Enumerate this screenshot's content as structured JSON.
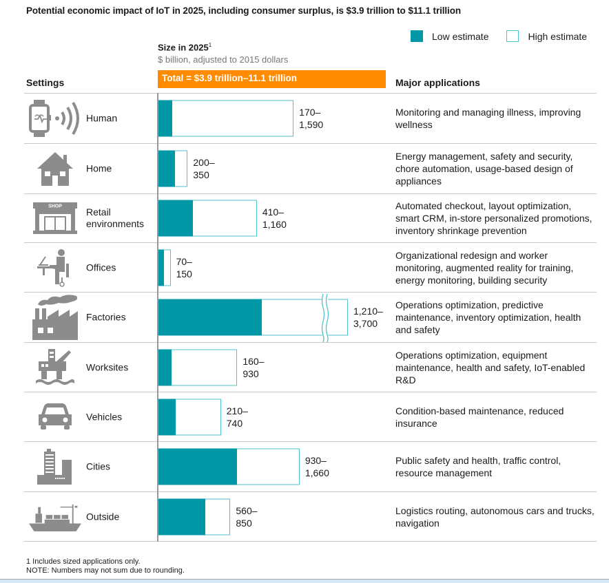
{
  "title": "Potential economic impact of IoT in 2025, including consumer surplus, is $3.9 trillion to $11.1 trillion",
  "legend": {
    "low": "Low estimate",
    "high": "High estimate"
  },
  "size_header": {
    "title": "Size in 2025",
    "superscript": "1",
    "subtitle": "$ billion, adjusted to 2015 dollars",
    "total": "Total = $3.9 trillion–11.1 trillion"
  },
  "headers": {
    "settings": "Settings",
    "applications": "Major applications"
  },
  "colors": {
    "low": "#0097a7",
    "high_border": "#4fc3cc",
    "total_bar": "#ff8c00"
  },
  "chart_data": {
    "type": "bar",
    "orientation": "horizontal",
    "title": "Potential economic impact of IoT in 2025, including consumer surplus, is $3.9 trillion to $11.1 trillion",
    "xlabel": "Size in 2025, $ billion, adjusted to 2015 dollars",
    "categories": [
      "Human",
      "Home",
      "Retail environments",
      "Offices",
      "Factories",
      "Worksites",
      "Vehicles",
      "Cities",
      "Outside"
    ],
    "series": [
      {
        "name": "Low estimate",
        "values": [
          170,
          200,
          410,
          70,
          1210,
          160,
          210,
          930,
          560
        ]
      },
      {
        "name": "High estimate",
        "values": [
          1590,
          350,
          1160,
          150,
          3700,
          930,
          740,
          1660,
          850
        ]
      }
    ],
    "axis_break": {
      "category": "Factories"
    },
    "legend_position": "top-right",
    "grid": false,
    "total": "Total = $3.9 trillion–11.1 trillion"
  },
  "rows": [
    {
      "setting": "Human",
      "icon": "smartwatch-icon",
      "range_low": "170–",
      "range_high": "1,590",
      "applications": "Monitoring and managing illness, improving wellness"
    },
    {
      "setting": "Home",
      "icon": "house-icon",
      "range_low": "200–",
      "range_high": "350",
      "applications": "Energy management, safety and security, chore automation, usage-based design of appliances"
    },
    {
      "setting": "Retail\nenvironments",
      "icon": "shop-icon",
      "shop_text": "SHOP",
      "range_low": "410–",
      "range_high": "1,160",
      "applications": "Automated checkout, layout optimization, smart CRM, in-store personalized promotions, inventory shrinkage prevention"
    },
    {
      "setting": "Offices",
      "icon": "office-worker-icon",
      "range_low": "70–",
      "range_high": "150",
      "applications": "Organizational redesign and worker monitoring, augmented reality for training, energy monitoring, building security"
    },
    {
      "setting": "Factories",
      "icon": "factory-icon",
      "range_low": "1,210–",
      "range_high": "3,700",
      "applications": "Operations optimization, predictive maintenance, inventory optimization, health and safety"
    },
    {
      "setting": "Worksites",
      "icon": "oil-rig-icon",
      "range_low": "160–",
      "range_high": "930",
      "applications": "Operations optimization, equipment maintenance, health and safety, IoT-enabled R&D"
    },
    {
      "setting": "Vehicles",
      "icon": "car-icon",
      "range_low": "210–",
      "range_high": "740",
      "applications": "Condition-based maintenance, reduced insurance"
    },
    {
      "setting": "Cities",
      "icon": "city-buildings-icon",
      "range_low": "930–",
      "range_high": "1,660",
      "applications": "Public safety and health, traffic control, resource management"
    },
    {
      "setting": "Outside",
      "icon": "cargo-ship-icon",
      "range_low": "560–",
      "range_high": "850",
      "applications": "Logistics routing, autonomous cars and trucks, navigation"
    }
  ],
  "footnotes": {
    "note1": "1  Includes sized applications only.",
    "note2": "NOTE: Numbers may not sum due to rounding."
  }
}
